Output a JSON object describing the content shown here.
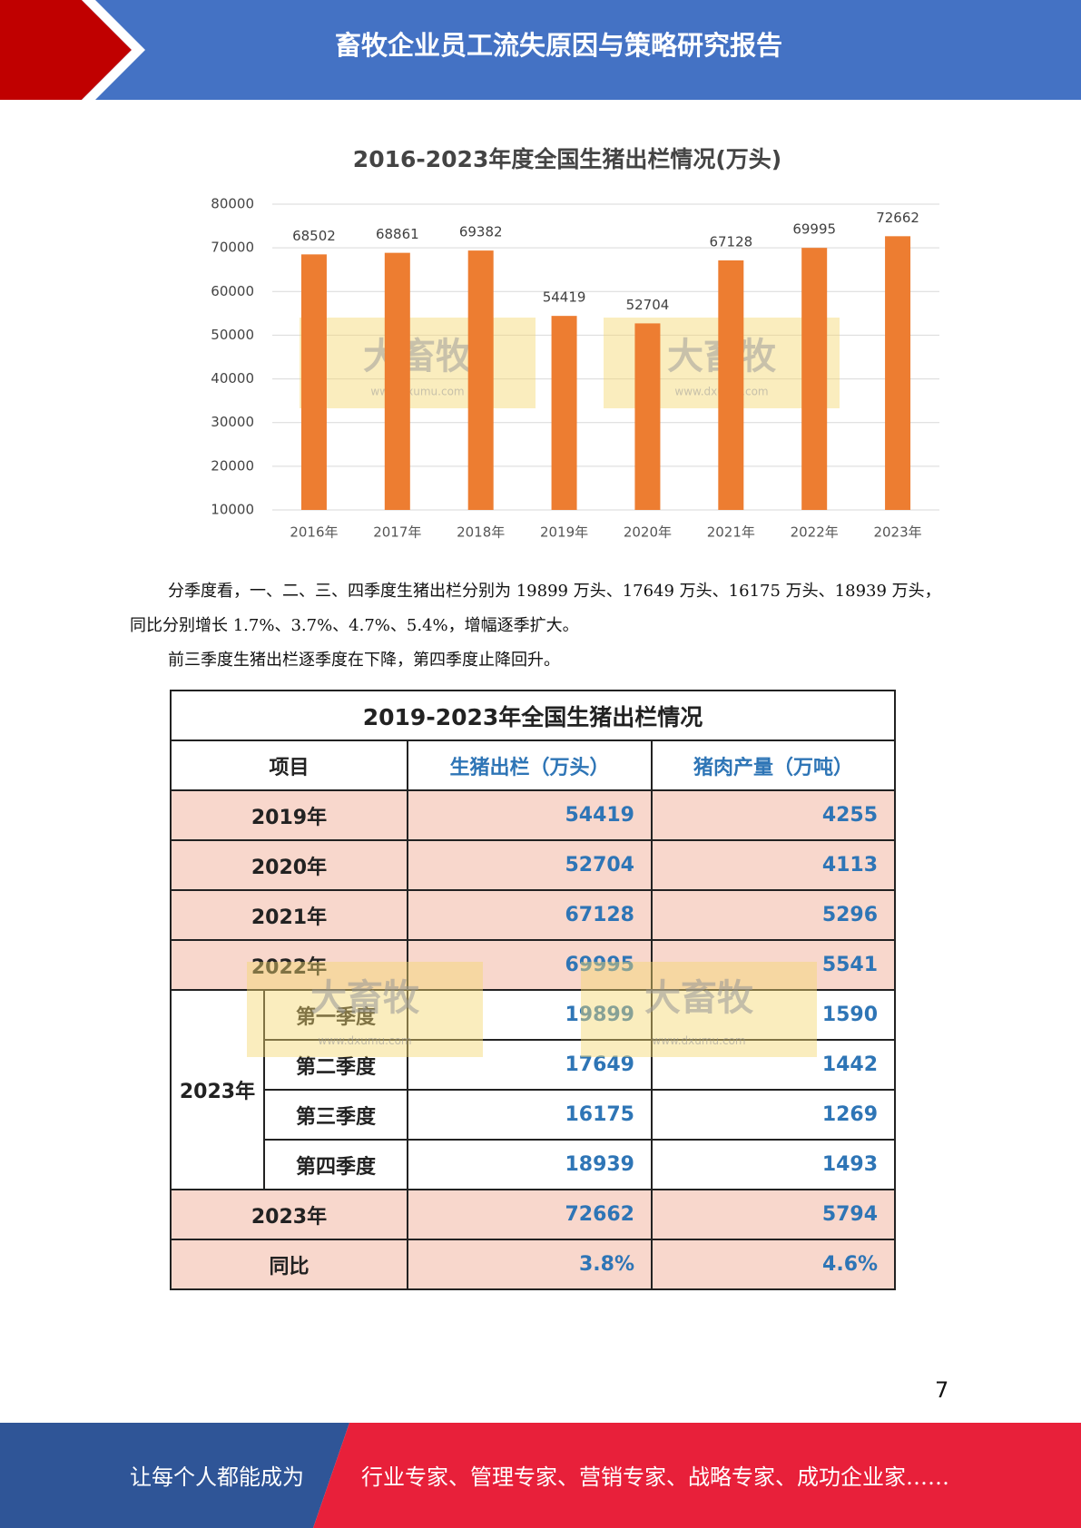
{
  "header": {
    "title": "畜牧企业员工流失原因与策略研究报告"
  },
  "chart_data": {
    "type": "bar",
    "title": "2016-2023年度全国生猪出栏情况(万头)",
    "categories": [
      "2016年",
      "2017年",
      "2018年",
      "2019年",
      "2020年",
      "2021年",
      "2022年",
      "2023年"
    ],
    "values": [
      68502,
      68861,
      69382,
      54419,
      52704,
      67128,
      69995,
      72662
    ],
    "color": "#ed7d31",
    "ylim": [
      10000,
      80000
    ],
    "yticks": [
      10000,
      20000,
      30000,
      40000,
      50000,
      60000,
      70000,
      80000
    ],
    "grid": true
  },
  "watermark": {
    "brand": "大畜牧",
    "url": "www.dxumu.com"
  },
  "paragraphs": [
    "分季度看，一、二、三、四季度生猪出栏分别为 19899 万头、17649 万头、16175 万头、18939 万头，同比分别增长 1.7%、3.7%、4.7%、5.4%，增幅逐季扩大。",
    "前三季度生猪出栏逐季度在下降，第四季度止降回升。"
  ],
  "table": {
    "title": "2019-2023年全国生猪出栏情况",
    "header": [
      "项目",
      "生猪出栏（万头）",
      "猪肉产量（万吨）"
    ],
    "rows_before": [
      [
        "2019年",
        54419,
        4255
      ],
      [
        "2020年",
        52704,
        4113
      ],
      [
        "2021年",
        67128,
        5296
      ],
      [
        "2022年",
        69995,
        5541
      ]
    ],
    "group": {
      "label": "2023年",
      "rows": [
        [
          "第一季度",
          19899,
          1590
        ],
        [
          "第二季度",
          17649,
          1442
        ],
        [
          "第三季度",
          16175,
          1269
        ],
        [
          "第四季度",
          18939,
          1493
        ]
      ]
    },
    "rows_after": [
      [
        "2023年",
        72662,
        5794
      ],
      [
        "同比",
        "3.8%",
        "4.6%"
      ]
    ]
  },
  "page_number": "7",
  "footer": {
    "left": "让每个人都能成为",
    "right": "行业专家、管理专家、营销专家、战略专家、成功企业家……"
  }
}
